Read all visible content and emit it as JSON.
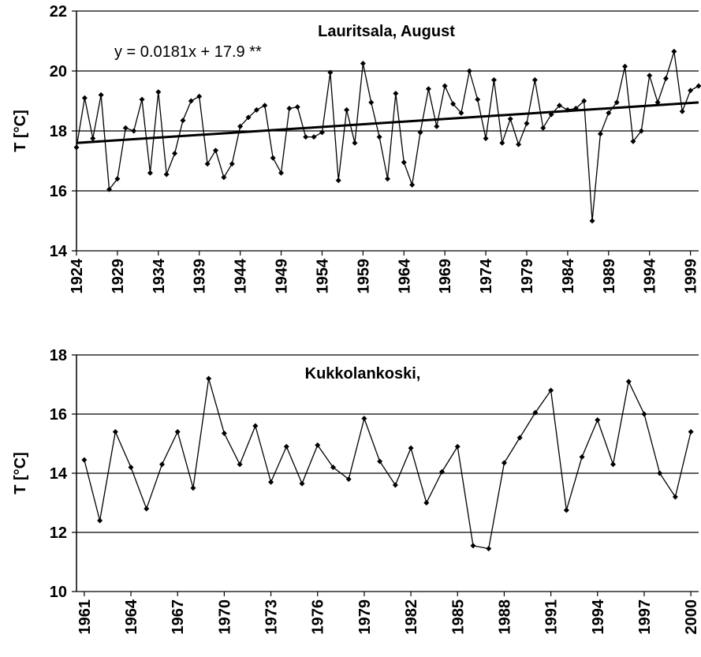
{
  "chart_data": [
    {
      "type": "line",
      "annotations": [
        "Lauritsala, August"
      ],
      "ylabel": "T [°C]",
      "x": [
        1924,
        1925,
        1926,
        1927,
        1928,
        1929,
        1930,
        1931,
        1932,
        1933,
        1934,
        1935,
        1936,
        1937,
        1938,
        1939,
        1940,
        1941,
        1942,
        1943,
        1944,
        1945,
        1946,
        1947,
        1948,
        1949,
        1950,
        1951,
        1952,
        1953,
        1954,
        1955,
        1956,
        1957,
        1958,
        1959,
        1960,
        1961,
        1962,
        1963,
        1964,
        1965,
        1966,
        1967,
        1968,
        1969,
        1970,
        1971,
        1972,
        1973,
        1974,
        1975,
        1976,
        1977,
        1978,
        1979,
        1980,
        1981,
        1982,
        1983,
        1984,
        1985,
        1986,
        1987,
        1988,
        1989,
        1990,
        1991,
        1992,
        1993,
        1994,
        1995,
        1996,
        1997,
        1998,
        1999,
        2000
      ],
      "series": [
        {
          "color": "#000000",
          "values": [
            17.45,
            19.1,
            17.75,
            19.2,
            16.05,
            16.4,
            18.1,
            18.0,
            19.05,
            16.6,
            19.3,
            16.55,
            17.25,
            18.35,
            19.0,
            19.15,
            16.9,
            17.35,
            16.45,
            16.9,
            18.15,
            18.45,
            18.7,
            18.85,
            17.1,
            16.6,
            18.75,
            18.8,
            17.8,
            17.8,
            17.95,
            19.95,
            16.35,
            18.7,
            17.6,
            20.25,
            18.95,
            17.8,
            16.4,
            19.25,
            16.95,
            16.2,
            17.95,
            19.4,
            18.15,
            19.5,
            18.9,
            18.6,
            20.0,
            19.05,
            17.75,
            19.7,
            17.6,
            18.4,
            17.55,
            18.25,
            19.7,
            18.1,
            18.55,
            18.85,
            18.7,
            18.75,
            19.0,
            15.0,
            17.9,
            18.6,
            18.95,
            20.15,
            17.65,
            18.0,
            19.85,
            18.95,
            19.75,
            20.65,
            18.65,
            19.35,
            19.5
          ]
        }
      ],
      "trend": {
        "label": "y = 0.0181x + 17.9 **",
        "x": [
          1924,
          2000
        ],
        "values": [
          17.6,
          18.95
        ],
        "color": "#000000"
      },
      "xlim": [
        1924,
        2000
      ],
      "xticks": [
        1924,
        1929,
        1934,
        1939,
        1944,
        1949,
        1954,
        1959,
        1964,
        1969,
        1974,
        1979,
        1984,
        1989,
        1994,
        1999
      ],
      "ylim": [
        14,
        22
      ],
      "yticks": [
        14,
        16,
        18,
        20,
        22
      ],
      "grid": true
    },
    {
      "type": "line",
      "annotations": [
        "Kukkolankoski,"
      ],
      "ylabel": "T [°C]",
      "x": [
        1961,
        1962,
        1963,
        1964,
        1965,
        1966,
        1967,
        1968,
        1969,
        1970,
        1971,
        1972,
        1973,
        1974,
        1975,
        1976,
        1977,
        1978,
        1979,
        1980,
        1981,
        1982,
        1983,
        1984,
        1985,
        1986,
        1987,
        1988,
        1989,
        1990,
        1991,
        1992,
        1993,
        1994,
        1995,
        1996,
        1997,
        1998,
        1999,
        2000
      ],
      "series": [
        {
          "color": "#000000",
          "values": [
            14.45,
            12.4,
            15.4,
            14.2,
            12.8,
            14.3,
            15.4,
            13.5,
            17.2,
            15.35,
            14.3,
            15.6,
            13.7,
            14.9,
            13.65,
            14.95,
            14.2,
            13.8,
            15.85,
            14.4,
            13.6,
            14.85,
            13.0,
            14.05,
            14.9,
            11.55,
            11.45,
            14.35,
            15.2,
            16.05,
            16.8,
            12.75,
            14.55,
            15.8,
            14.3,
            17.1,
            16.0,
            14.0,
            13.2,
            15.4
          ]
        }
      ],
      "xlim": [
        1960.5,
        2000.5
      ],
      "xticks": [
        1961,
        1964,
        1967,
        1970,
        1973,
        1976,
        1979,
        1982,
        1985,
        1988,
        1991,
        1994,
        1997,
        2000
      ],
      "ylim": [
        10,
        18
      ],
      "yticks": [
        10,
        12,
        14,
        16,
        18
      ],
      "grid": true
    }
  ]
}
